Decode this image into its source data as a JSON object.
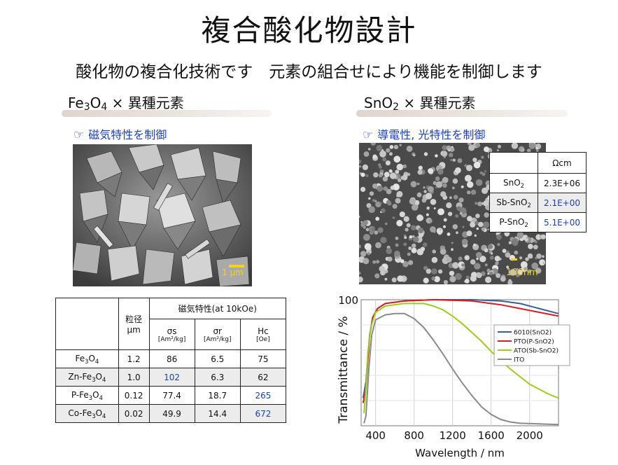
{
  "title": "複合酸化物設計",
  "subtitle": "酸化物の複合化技術です　元素の組合せにより機能を制御します",
  "left": {
    "heading_pre": "Fe",
    "heading_sub1": "3",
    "heading_mid": "O",
    "heading_sub2": "4",
    "heading_post": " × 異種元素",
    "note_icon": "pointing-hand-icon",
    "note": "磁気特性を制御",
    "scale_label": "1 μm",
    "table": {
      "h_size": "粒径",
      "h_size_unit": "μm",
      "h_mag": "磁気特性(at 10kOe)",
      "h_sigma_s": "σs",
      "h_sigma_s_unit": "[Am²/kg]",
      "h_sigma_r": "σr",
      "h_sigma_r_unit": "[Am²/kg]",
      "h_hc": "Hc",
      "h_hc_unit": "[Oe]",
      "rows": [
        {
          "pre": "",
          "name": "Fe",
          "s1": "3",
          "m": "O",
          "s2": "4",
          "size": "1.2",
          "ss": "86",
          "sr": "6.5",
          "hc": "75"
        },
        {
          "pre": "Zn-",
          "name": "Fe",
          "s1": "3",
          "m": "O",
          "s2": "4",
          "size": "1.0",
          "ss": "102",
          "sr": "6.3",
          "hc": "62"
        },
        {
          "pre": "P-",
          "name": "Fe",
          "s1": "3",
          "m": "O",
          "s2": "4",
          "size": "0.12",
          "ss": "77.4",
          "sr": "18.7",
          "hc": "265"
        },
        {
          "pre": "Co-",
          "name": "Fe",
          "s1": "3",
          "m": "O",
          "s2": "4",
          "size": "0.02",
          "ss": "49.9",
          "sr": "14.4",
          "hc": "672"
        }
      ]
    }
  },
  "right": {
    "heading_pre": "SnO",
    "heading_sub": "2",
    "heading_post": " × 異種元素",
    "note_icon": "pointing-hand-icon",
    "note": "導電性, 光特性を制御",
    "scale_label": "100nm",
    "res_table": {
      "unit": "Ωcm",
      "rows": [
        {
          "name": "SnO",
          "sub": "2",
          "value": "2.3E+06"
        },
        {
          "name": "Sb-SnO",
          "sub": "2",
          "value": "2.1E+00"
        },
        {
          "name": "P-SnO",
          "sub": "2",
          "value": "5.1E+00"
        }
      ]
    }
  },
  "colors": {
    "note_blue": "#1a3fb8",
    "series_6010": "#3a5f95",
    "series_pto": "#d42020",
    "series_ato": "#9ccc1c",
    "series_ito": "#8a8a8a"
  },
  "chart_data": {
    "type": "line",
    "title": "",
    "xlabel": "Wavelength / nm",
    "ylabel": "Transmittance / %",
    "xlim": [
      250,
      2300
    ],
    "ylim": [
      0,
      100
    ],
    "xticks": [
      400,
      800,
      1200,
      1600,
      2000
    ],
    "ytick_label": "100",
    "grid": true,
    "legend_position": "top-right",
    "series": [
      {
        "name": "6010(SnO2)",
        "color": "#3a5f95",
        "points": [
          [
            270,
            22
          ],
          [
            300,
            35
          ],
          [
            320,
            55
          ],
          [
            340,
            73
          ],
          [
            370,
            86
          ],
          [
            420,
            93
          ],
          [
            500,
            97
          ],
          [
            700,
            99
          ],
          [
            1000,
            100
          ],
          [
            1400,
            100
          ],
          [
            1700,
            99
          ],
          [
            1900,
            97
          ],
          [
            2100,
            93
          ],
          [
            2300,
            89
          ]
        ]
      },
      {
        "name": "PTO(P-SnO2)",
        "color": "#d42020",
        "points": [
          [
            270,
            18
          ],
          [
            300,
            30
          ],
          [
            320,
            52
          ],
          [
            340,
            72
          ],
          [
            370,
            86
          ],
          [
            420,
            93
          ],
          [
            500,
            97
          ],
          [
            700,
            99
          ],
          [
            1000,
            100
          ],
          [
            1400,
            99
          ],
          [
            1700,
            96
          ],
          [
            1900,
            93
          ],
          [
            2100,
            90
          ],
          [
            2300,
            87
          ]
        ]
      },
      {
        "name": "ATO(Sb-SnO2)",
        "color": "#9ccc1c",
        "points": [
          [
            280,
            10
          ],
          [
            300,
            30
          ],
          [
            320,
            58
          ],
          [
            350,
            78
          ],
          [
            400,
            90
          ],
          [
            500,
            95
          ],
          [
            700,
            97
          ],
          [
            900,
            97
          ],
          [
            1000,
            95
          ],
          [
            1100,
            92
          ],
          [
            1200,
            87
          ],
          [
            1300,
            81
          ],
          [
            1400,
            74
          ],
          [
            1500,
            67
          ],
          [
            1600,
            59
          ],
          [
            1800,
            45
          ],
          [
            2000,
            33
          ],
          [
            2200,
            25
          ],
          [
            2300,
            22
          ]
        ]
      },
      {
        "name": "ITO",
        "color": "#8a8a8a",
        "points": [
          [
            280,
            2
          ],
          [
            300,
            8
          ],
          [
            330,
            45
          ],
          [
            360,
            72
          ],
          [
            400,
            84
          ],
          [
            500,
            88
          ],
          [
            600,
            89
          ],
          [
            700,
            89
          ],
          [
            800,
            85
          ],
          [
            900,
            78
          ],
          [
            1000,
            68
          ],
          [
            1100,
            57
          ],
          [
            1200,
            45
          ],
          [
            1300,
            34
          ],
          [
            1400,
            24
          ],
          [
            1500,
            15
          ],
          [
            1600,
            9
          ],
          [
            1700,
            5
          ],
          [
            1800,
            3
          ],
          [
            1900,
            2
          ],
          [
            2300,
            1
          ]
        ]
      }
    ]
  }
}
